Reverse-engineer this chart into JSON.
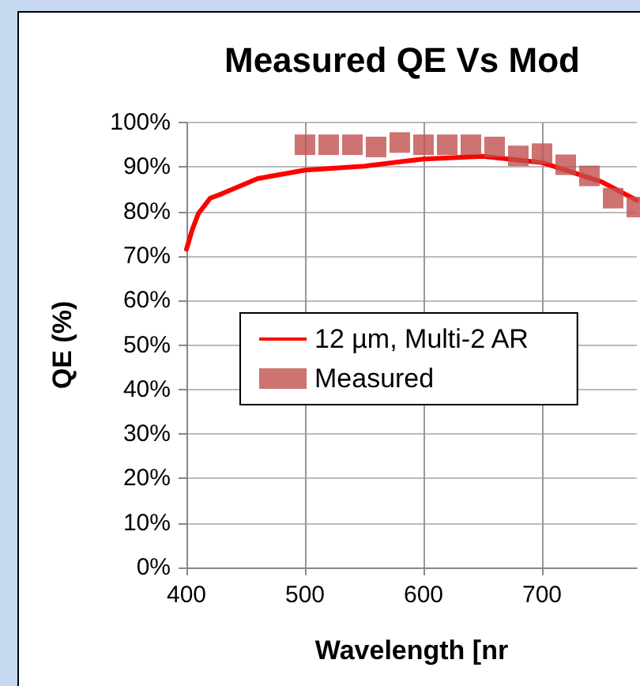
{
  "chart_data": {
    "type": "scatter",
    "title": "Measured QE Vs Mod",
    "xlabel": "Wavelength [nr",
    "ylabel": "QE (%)",
    "xlim": [
      400,
      780
    ],
    "xticks": [
      400,
      500,
      600,
      700
    ],
    "ylim": [
      0,
      100
    ],
    "yticks": [
      {
        "value": 0,
        "label": "0%"
      },
      {
        "value": 10,
        "label": "10%"
      },
      {
        "value": 20,
        "label": "20%"
      },
      {
        "value": 30,
        "label": "30%"
      },
      {
        "value": 40,
        "label": "40%"
      },
      {
        "value": 50,
        "label": "50%"
      },
      {
        "value": 60,
        "label": "60%"
      },
      {
        "value": 70,
        "label": "70%"
      },
      {
        "value": 80,
        "label": "80%"
      },
      {
        "value": 90,
        "label": "90%"
      },
      {
        "value": 100,
        "label": "100%"
      }
    ],
    "grid": true,
    "legend": "right",
    "series": [
      {
        "name": "12 µm, Multi-2 AR",
        "type": "line",
        "color": "#ff0000",
        "marker": "none",
        "line_style": "solid",
        "x": [
          400,
          405,
          410,
          420,
          430,
          460,
          500,
          550,
          600,
          650,
          700,
          750,
          780
        ],
        "values": [
          71.5,
          76,
          79.5,
          83,
          84,
          87.4,
          89.3,
          90.2,
          91.8,
          92.4,
          91,
          86.7,
          82.5
        ]
      },
      {
        "name": "Measured",
        "color": "#c0504d",
        "marker": "square",
        "x": [
          500,
          520,
          540,
          560,
          580,
          600,
          620,
          640,
          660,
          680,
          700,
          720,
          740,
          760,
          780
        ],
        "values": [
          95,
          95,
          95,
          94.5,
          95.5,
          95,
          95,
          95,
          94.5,
          92.5,
          93,
          90.5,
          88,
          83,
          81
        ]
      }
    ]
  }
}
